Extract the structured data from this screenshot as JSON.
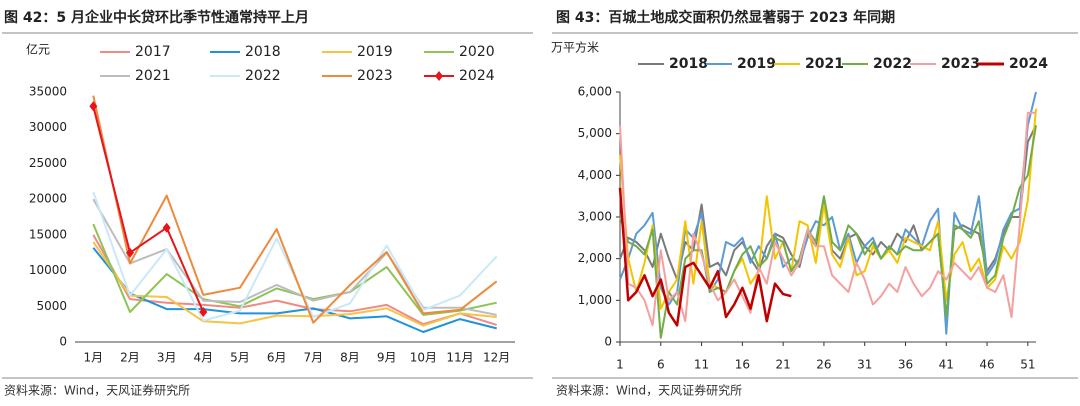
{
  "chart_data": [
    {
      "type": "line",
      "title": "图 42：5 月企业中长贷环比季节性通常持平上月",
      "unit": "亿元",
      "source": "资料来源：Wind，天风证券研究所",
      "categories": [
        "1月",
        "2月",
        "3月",
        "4月",
        "5月",
        "6月",
        "7月",
        "8月",
        "9月",
        "10月",
        "11月",
        "12月"
      ],
      "ylim": [
        0,
        35000
      ],
      "yticks": [
        0,
        5000,
        10000,
        15000,
        20000,
        25000,
        30000,
        35000
      ],
      "grid": false,
      "series": [
        {
          "name": "2017",
          "color": "#f08a84",
          "values": [
            15000,
            6000,
            5500,
            5200,
            4800,
            5800,
            4600,
            4300,
            5200,
            2500,
            4000,
            2400
          ]
        },
        {
          "name": "2018",
          "color": "#1f93dc",
          "values": [
            13200,
            6800,
            4600,
            4600,
            4000,
            4000,
            4700,
            3300,
            3600,
            1400,
            3200,
            1900
          ]
        },
        {
          "name": "2019",
          "color": "#f6c345",
          "values": [
            14000,
            6500,
            6300,
            2900,
            2600,
            3700,
            3600,
            3900,
            4700,
            2300,
            4000,
            3500
          ]
        },
        {
          "name": "2020",
          "color": "#8dc455",
          "values": [
            16500,
            4200,
            9500,
            6000,
            5000,
            7500,
            6000,
            7000,
            10500,
            3800,
            4400,
            5500
          ]
        },
        {
          "name": "2021",
          "color": "#bdbdbd",
          "values": [
            20000,
            11000,
            13000,
            5800,
            5600,
            8000,
            5800,
            7000,
            12500,
            4800,
            4800,
            3800
          ]
        },
        {
          "name": "2022",
          "color": "#c9e8f8",
          "values": [
            21000,
            6500,
            13000,
            3000,
            4400,
            14500,
            3500,
            5400,
            13500,
            4500,
            6500,
            12000
          ]
        },
        {
          "name": "2023",
          "color": "#ee8a3c",
          "values": [
            34500,
            11000,
            20500,
            6600,
            7600,
            15800,
            2700,
            8000,
            12600,
            4000,
            4500,
            8500
          ]
        },
        {
          "name": "2024",
          "color": "#e8141c",
          "marker": "diamond",
          "values": [
            33000,
            12500,
            16000,
            4200,
            null,
            null,
            null,
            null,
            null,
            null,
            null,
            null
          ]
        }
      ]
    },
    {
      "type": "line",
      "title": "图 43：百城土地成交面积仍然显著弱于 2023 年同期",
      "unit": "万平方米",
      "source": "资料来源：Wind，天风证券研究所",
      "x": [
        1,
        2,
        3,
        4,
        5,
        6,
        7,
        8,
        9,
        10,
        11,
        12,
        13,
        14,
        15,
        16,
        17,
        18,
        19,
        20,
        21,
        22,
        23,
        24,
        25,
        26,
        27,
        28,
        29,
        30,
        31,
        32,
        33,
        34,
        35,
        36,
        37,
        38,
        39,
        40,
        41,
        42,
        43,
        44,
        45,
        46,
        47,
        48,
        49,
        50,
        51,
        52
      ],
      "xlim": [
        1,
        52
      ],
      "xticks": [
        1,
        6,
        11,
        16,
        21,
        26,
        31,
        36,
        41,
        46,
        51
      ],
      "ylim": [
        0,
        6000
      ],
      "yticks": [
        0,
        {
          "value": 1000,
          "label": "1,000"
        },
        {
          "value": 2000,
          "label": "2,000"
        },
        {
          "value": 3000,
          "label": "3,000"
        },
        {
          "value": 4000,
          "label": "4,000"
        },
        {
          "value": 5000,
          "label": "5,000"
        },
        {
          "value": 6000,
          "label": "6,000"
        }
      ],
      "grid": false,
      "series": [
        {
          "name": "2018",
          "color": "#7a7a7a",
          "values": [
            2000,
            2500,
            2400,
            2200,
            1800,
            2600,
            2000,
            1500,
            2400,
            2200,
            3300,
            1800,
            1900,
            1600,
            2200,
            2400,
            2000,
            1700,
            2300,
            2600,
            2500,
            2100,
            1800,
            2600,
            2300,
            3400,
            2200,
            2000,
            2500,
            2600,
            2300,
            2100,
            2400,
            2200,
            2600,
            2400,
            2800,
            2200,
            2400,
            2600,
            600,
            2700,
            2800,
            2700,
            2600,
            1700,
            2000,
            2600,
            3000,
            3000,
            4800,
            5200
          ]
        },
        {
          "name": "2019",
          "color": "#5b9bd5",
          "values": [
            1500,
            2000,
            2600,
            2800,
            3100,
            1300,
            900,
            1200,
            2700,
            2500,
            3100,
            1200,
            1500,
            2400,
            2300,
            2500,
            1900,
            2300,
            2000,
            2600,
            1800,
            2000,
            1900,
            2500,
            2900,
            2800,
            3000,
            2200,
            2600,
            1900,
            2300,
            2500,
            2000,
            2300,
            2100,
            2700,
            2500,
            2300,
            2900,
            3200,
            200,
            3100,
            2700,
            2600,
            3500,
            1600,
            1900,
            2700,
            3100,
            3200,
            5200,
            6000
          ]
        },
        {
          "name": "2021",
          "color": "#f5c400",
          "values": [
            4500,
            2000,
            1200,
            1900,
            2800,
            800,
            1200,
            1500,
            2900,
            1400,
            2900,
            1400,
            1300,
            1200,
            1700,
            2000,
            1400,
            1700,
            3500,
            2000,
            2400,
            1700,
            2900,
            2800,
            1900,
            3300,
            2100,
            1800,
            2500,
            1600,
            1700,
            2300,
            2000,
            2200,
            1900,
            2500,
            2400,
            2300,
            2200,
            2900,
            1000,
            2100,
            2400,
            1700,
            2000,
            1300,
            1500,
            2300,
            2000,
            2400,
            3400,
            5600
          ]
        },
        {
          "name": "2022",
          "color": "#70ad47",
          "values": [
            3000,
            2400,
            2300,
            2100,
            2700,
            100,
            1200,
            900,
            2000,
            2200,
            2200,
            1200,
            1300,
            1200,
            1700,
            2100,
            2300,
            1800,
            2000,
            2500,
            2400,
            1700,
            2000,
            2700,
            2400,
            3500,
            2400,
            2200,
            2800,
            2600,
            2100,
            2400,
            2000,
            2300,
            2100,
            2300,
            2200,
            2200,
            2400,
            2600,
            600,
            2800,
            2700,
            2500,
            2900,
            1400,
            1600,
            2500,
            3000,
            3700,
            4000,
            5200
          ]
        },
        {
          "name": "2023",
          "color": "#f4a0a0",
          "values": [
            5200,
            1400,
            1300,
            1000,
            400,
            2200,
            1000,
            1200,
            500,
            2600,
            2100,
            1400,
            1000,
            1200,
            1500,
            1100,
            700,
            1800,
            1400,
            2400,
            2000,
            1600,
            1900,
            2700,
            2300,
            2300,
            1600,
            1400,
            1200,
            1900,
            1500,
            900,
            1100,
            1400,
            1200,
            1800,
            1400,
            1100,
            1300,
            1700,
            1500,
            1900,
            1700,
            1500,
            1800,
            1300,
            1200,
            1600,
            600,
            2800,
            5500,
            5500
          ]
        },
        {
          "name": "2024",
          "color": "#c00000",
          "width": 2.5,
          "values": [
            3700,
            1000,
            1200,
            1600,
            1100,
            1500,
            700,
            400,
            1800,
            1900,
            1600,
            1300,
            1700,
            600,
            900,
            1300,
            800,
            1600,
            500,
            1400,
            1150,
            1100,
            null,
            null,
            null,
            null,
            null,
            null,
            null,
            null,
            null,
            null,
            null,
            null,
            null,
            null,
            null,
            null,
            null,
            null,
            null,
            null,
            null,
            null,
            null,
            null,
            null,
            null,
            null,
            null,
            null,
            null
          ]
        }
      ]
    }
  ]
}
